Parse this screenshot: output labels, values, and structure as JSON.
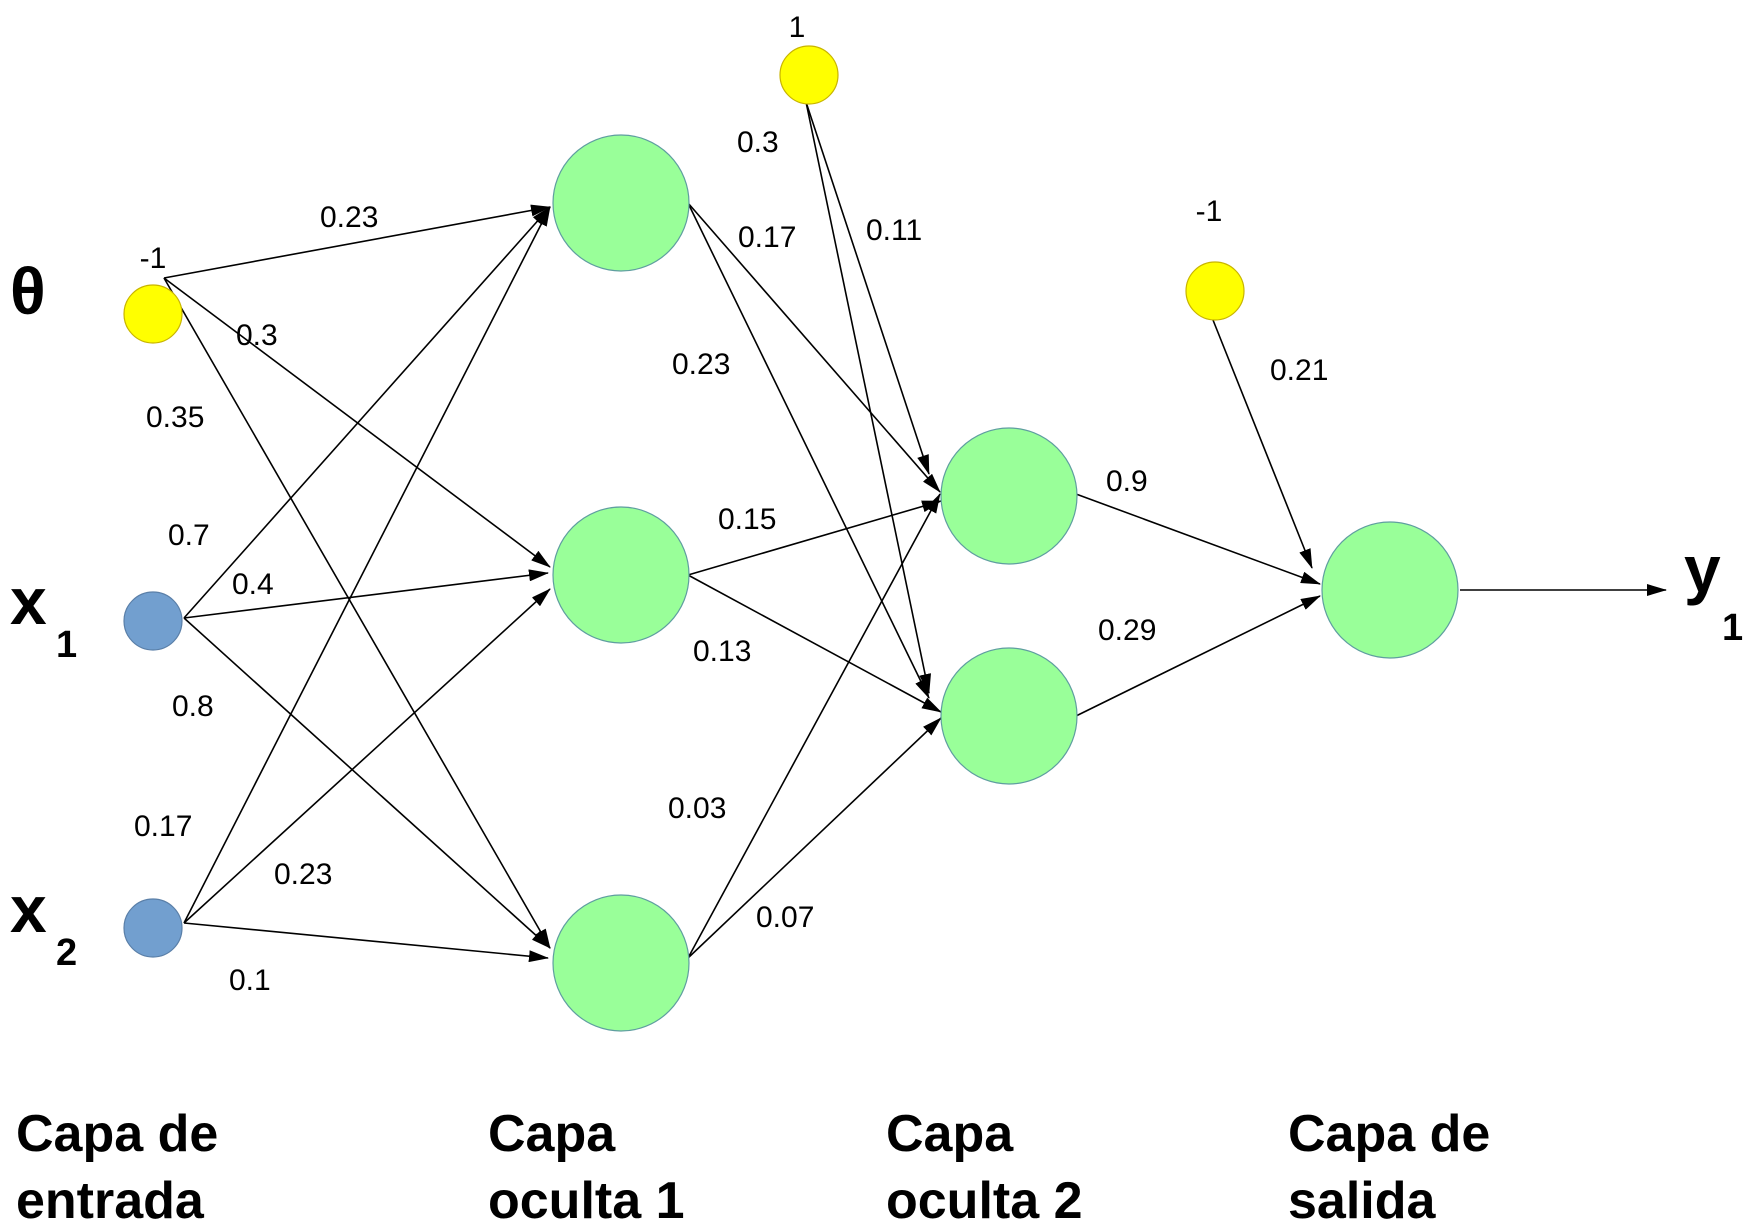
{
  "inputs": {
    "theta": {
      "symbol": "θ",
      "value": "-1"
    },
    "x1": {
      "symbol": "x",
      "sub": "1"
    },
    "x2": {
      "symbol": "x",
      "sub": "2"
    }
  },
  "biases": {
    "hidden2": "1",
    "output": "-1"
  },
  "output": {
    "symbol": "y",
    "sub": "1"
  },
  "layers": {
    "input": [
      "Capa de",
      "entrada"
    ],
    "hidden1": [
      "Capa",
      "oculta 1"
    ],
    "hidden2": [
      "Capa",
      "oculta 2"
    ],
    "output": [
      "Capa de",
      "salida"
    ]
  },
  "weights": {
    "theta_h1a": "0.23",
    "theta_h1b": "0.3",
    "theta_h1c": "0.35",
    "x1_h1a": "0.7",
    "x1_h1b": "0.4",
    "x1_h1c": "0.8",
    "x2_h1a": "0.17",
    "x2_h1b": "0.23",
    "x2_h1c": "0.1",
    "bias_h2a": "0.3",
    "bias_h2b": "0.11",
    "h1a_h2a": "0.17",
    "h1a_h2b": "0.23",
    "h1b_h2a": "0.15",
    "h1b_h2b": "0.13",
    "h1c_h2a": "0.03",
    "h1c_h2b": "0.07",
    "h2a_out": "0.9",
    "h2b_out": "0.29",
    "bias_out": "0.21"
  },
  "colors": {
    "hidden_node": "#99ff99",
    "input_node": "#729fcf",
    "bias_node": "#ffff00"
  }
}
